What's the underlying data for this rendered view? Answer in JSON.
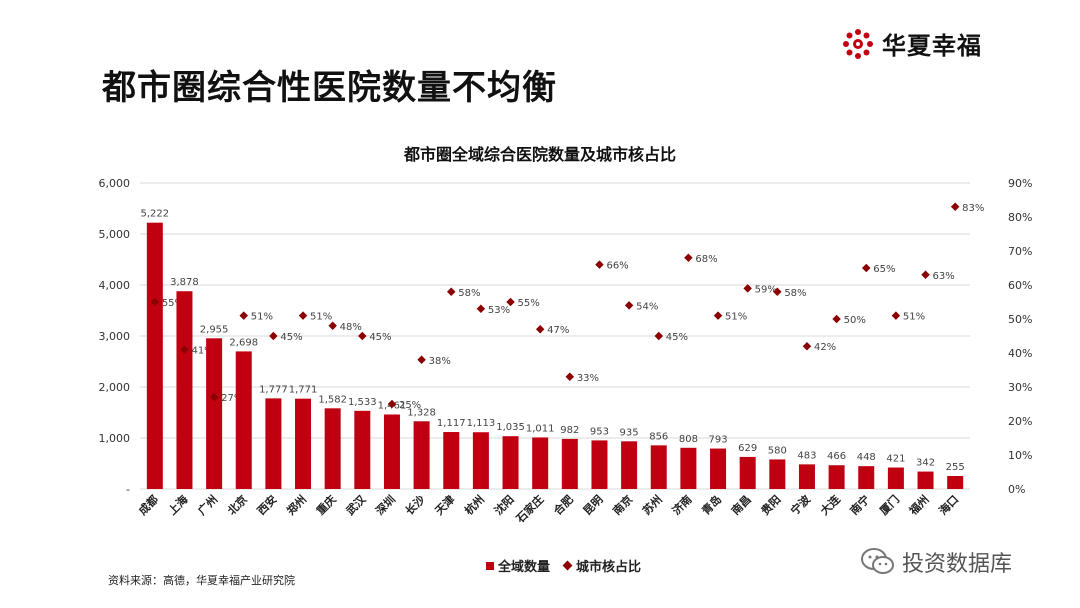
{
  "page": {
    "title": "都市圈综合性医院数量不均衡",
    "logo_text": "华夏幸福",
    "source": "资料来源：高德，华夏幸福产业研究院",
    "watermark": "投资数据库",
    "icons": [
      "company-logo-icon",
      "wechat-icon"
    ]
  },
  "colors": {
    "bar": "#c00010",
    "marker": "#8b0000",
    "label": "#444444",
    "grid": "#d9d9d9"
  },
  "chart_data": {
    "type": "bar",
    "title": "都市圈全域综合医院数量及城市核占比",
    "categories": [
      "成都",
      "上海",
      "广州",
      "北京",
      "西安",
      "郑州",
      "重庆",
      "武汉",
      "深圳",
      "长沙",
      "天津",
      "杭州",
      "沈阳",
      "石家庄",
      "合肥",
      "昆明",
      "南京",
      "苏州",
      "济南",
      "青岛",
      "南昌",
      "贵阳",
      "宁波",
      "大连",
      "南宁",
      "厦门",
      "福州",
      "海口"
    ],
    "series": [
      {
        "name": "全域数量",
        "type": "bar",
        "axis": "left",
        "values": [
          5222,
          3878,
          2955,
          2698,
          1777,
          1771,
          1582,
          1533,
          1461,
          1328,
          1117,
          1113,
          1035,
          1011,
          982,
          953,
          935,
          856,
          808,
          793,
          629,
          580,
          483,
          466,
          448,
          421,
          342,
          255
        ],
        "labels": [
          "5,222",
          "3,878",
          "2,955",
          "2,698",
          "1,777",
          "1,771",
          "1,582",
          "1,533",
          "1,461",
          "1,328",
          "1,117",
          "1,113",
          "1,035",
          "1,011",
          "982",
          "953",
          "935",
          "856",
          "808",
          "793",
          "629",
          "580",
          "483",
          "466",
          "448",
          "421",
          "342",
          "255"
        ]
      },
      {
        "name": "城市核占比",
        "type": "scatter",
        "axis": "right",
        "values": [
          55,
          41,
          27,
          51,
          45,
          51,
          48,
          45,
          25,
          38,
          58,
          53,
          55,
          47,
          33,
          66,
          54,
          45,
          68,
          51,
          59,
          58,
          42,
          50,
          65,
          51,
          63,
          83
        ],
        "labels": [
          "55%",
          "41%",
          "27%",
          "51%",
          "45%",
          "51%",
          "48%",
          "45%",
          "25%",
          "38%",
          "58%",
          "53%",
          "55%",
          "47%",
          "33%",
          "66%",
          "54%",
          "45%",
          "68%",
          "51%",
          "59%",
          "58%",
          "42%",
          "50%",
          "65%",
          "51%",
          "63%",
          "83%"
        ]
      }
    ],
    "y_left": {
      "range": [
        0,
        6000
      ],
      "tick_labels": [
        "-",
        "1,000",
        "2,000",
        "3,000",
        "4,000",
        "5,000",
        "6,000"
      ]
    },
    "y_right": {
      "range": [
        0,
        90
      ],
      "tick_labels": [
        "0%",
        "10%",
        "20%",
        "30%",
        "40%",
        "50%",
        "60%",
        "70%",
        "80%",
        "90%"
      ]
    },
    "grid": true,
    "legend": "bottom-center"
  }
}
